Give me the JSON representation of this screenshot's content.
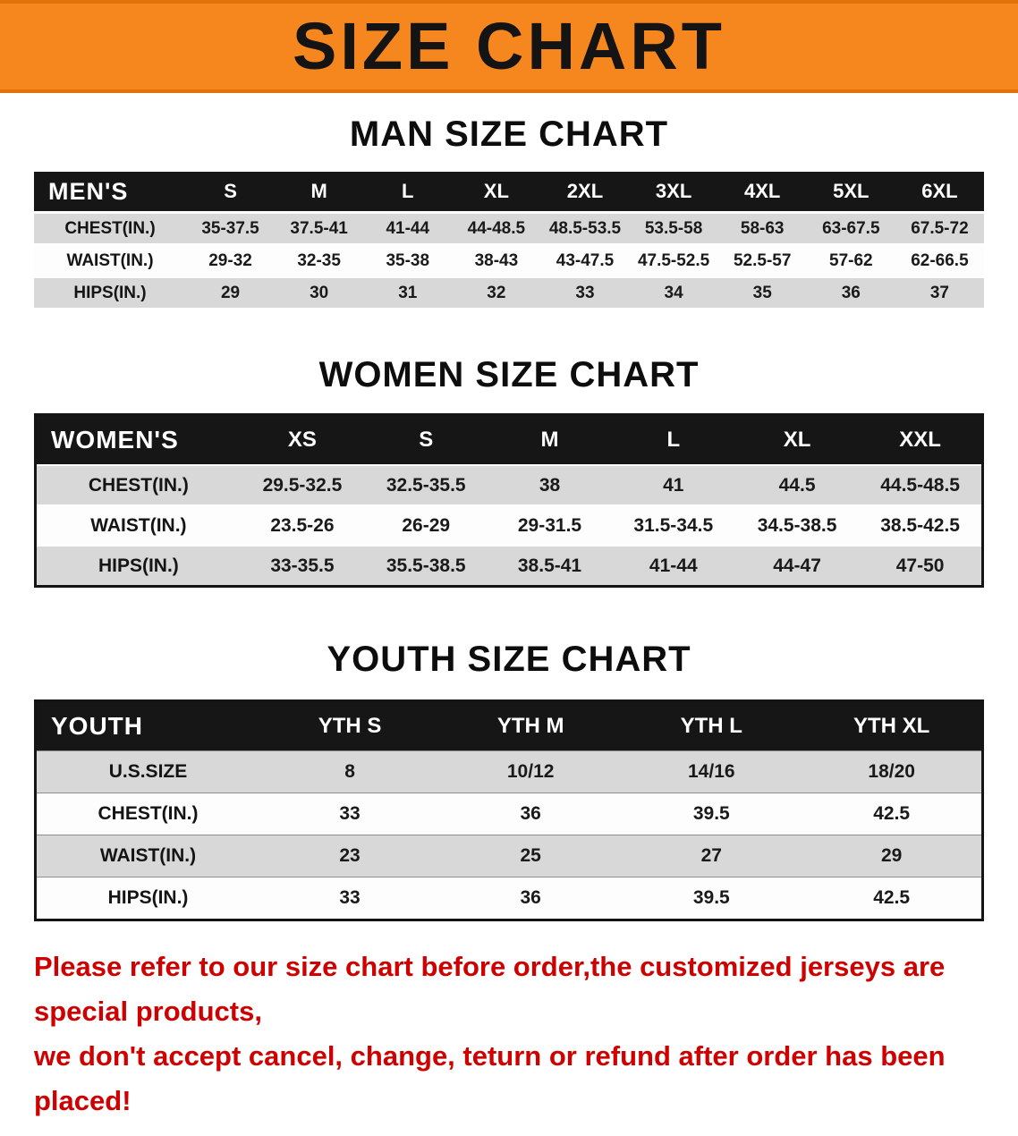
{
  "banner": {
    "title": "SIZE CHART",
    "bg_color": "#f6871f",
    "text_color": "#141414"
  },
  "sections": [
    {
      "id": "men",
      "heading": "MAN SIZE CHART",
      "table": {
        "header": [
          "MEN'S",
          "S",
          "M",
          "L",
          "XL",
          "2XL",
          "3XL",
          "4XL",
          "5XL",
          "6XL"
        ],
        "rows": [
          {
            "label": "CHEST(IN.)",
            "values": [
              "35-37.5",
              "37.5-41",
              "41-44",
              "44-48.5",
              "48.5-53.5",
              "53.5-58",
              "58-63",
              "63-67.5",
              "67.5-72"
            ]
          },
          {
            "label": "WAIST(IN.)",
            "values": [
              "29-32",
              "32-35",
              "35-38",
              "38-43",
              "43-47.5",
              "47.5-52.5",
              "52.5-57",
              "57-62",
              "62-66.5"
            ]
          },
          {
            "label": "HIPS(IN.)",
            "values": [
              "29",
              "30",
              "31",
              "32",
              "33",
              "34",
              "35",
              "36",
              "37"
            ]
          }
        ]
      }
    },
    {
      "id": "women",
      "heading": "WOMEN SIZE CHART",
      "table": {
        "header": [
          "WOMEN'S",
          "XS",
          "S",
          "M",
          "L",
          "XL",
          "XXL"
        ],
        "rows": [
          {
            "label": "CHEST(IN.)",
            "values": [
              "29.5-32.5",
              "32.5-35.5",
              "38",
              "41",
              "44.5",
              "44.5-48.5"
            ]
          },
          {
            "label": "WAIST(IN.)",
            "values": [
              "23.5-26",
              "26-29",
              "29-31.5",
              "31.5-34.5",
              "34.5-38.5",
              "38.5-42.5"
            ]
          },
          {
            "label": "HIPS(IN.)",
            "values": [
              "33-35.5",
              "35.5-38.5",
              "38.5-41",
              "41-44",
              "44-47",
              "47-50"
            ]
          }
        ]
      }
    },
    {
      "id": "youth",
      "heading": "YOUTH SIZE CHART",
      "table": {
        "header": [
          "YOUTH",
          "YTH S",
          "YTH M",
          "YTH L",
          "YTH XL"
        ],
        "rows": [
          {
            "label": "U.S.SIZE",
            "values": [
              "8",
              "10/12",
              "14/16",
              "18/20"
            ]
          },
          {
            "label": "CHEST(IN.)",
            "values": [
              "33",
              "36",
              "39.5",
              "42.5"
            ]
          },
          {
            "label": "WAIST(IN.)",
            "values": [
              "23",
              "25",
              "27",
              "29"
            ]
          },
          {
            "label": "HIPS(IN.)",
            "values": [
              "33",
              "36",
              "39.5",
              "42.5"
            ]
          }
        ]
      }
    }
  ],
  "disclaimer": {
    "line1": "Please refer to our size chart before order,the customized jerseys are special products,",
    "line2": "we don't accept cancel, change, teturn or refund after order has been placed!",
    "color": "#cf0000"
  }
}
